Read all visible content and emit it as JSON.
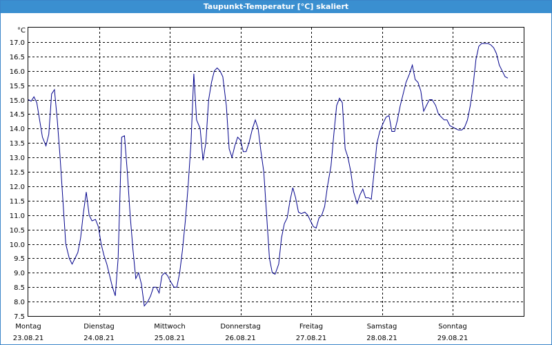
{
  "window": {
    "title": "Taupunkt-Temperatur [°C] skaliert"
  },
  "colors": {
    "title_bar": "#3a8fd0",
    "series_line": "#00008b",
    "grid": "#000000"
  },
  "chart_data": {
    "type": "line",
    "title": "Taupunkt-Temperatur [°C] skaliert",
    "ylabel": "°C",
    "ylim": [
      7.5,
      17.5
    ],
    "yticks": [
      7.5,
      8.0,
      8.5,
      9.0,
      9.5,
      10.0,
      10.5,
      11.0,
      11.5,
      12.0,
      12.5,
      13.0,
      13.5,
      14.0,
      14.5,
      15.0,
      15.5,
      16.0,
      16.5,
      17.0
    ],
    "ytick_labels": [
      "7.5",
      "8.0",
      "8.5",
      "9.0",
      "9.5",
      "10.0",
      "10.5",
      "11.0",
      "11.5",
      "12.0",
      "12.5",
      "13.0",
      "13.5",
      "14.0",
      "14.5",
      "15.0",
      "15.5",
      "16.0",
      "16.5",
      "17.0"
    ],
    "x_days": [
      {
        "day": "Montag",
        "date": "23.08.21"
      },
      {
        "day": "Dienstag",
        "date": "24.08.21"
      },
      {
        "day": "Mittwoch",
        "date": "25.08.21"
      },
      {
        "day": "Donnerstag",
        "date": "26.08.21"
      },
      {
        "day": "Freitag",
        "date": "27.08.21"
      },
      {
        "day": "Samstag",
        "date": "28.08.21"
      },
      {
        "day": "Sonntag",
        "date": "29.08.21"
      }
    ],
    "grid": true,
    "series": [
      {
        "points": [
          [
            0.0,
            15.0
          ],
          [
            0.04,
            14.95
          ],
          [
            0.08,
            15.1
          ],
          [
            0.12,
            14.9
          ],
          [
            0.16,
            14.3
          ],
          [
            0.2,
            13.7
          ],
          [
            0.25,
            13.4
          ],
          [
            0.29,
            13.8
          ],
          [
            0.33,
            15.2
          ],
          [
            0.37,
            15.35
          ],
          [
            0.41,
            14.3
          ],
          [
            0.45,
            13.0
          ],
          [
            0.49,
            11.5
          ],
          [
            0.53,
            10.0
          ],
          [
            0.58,
            9.5
          ],
          [
            0.62,
            9.3
          ],
          [
            0.66,
            9.5
          ],
          [
            0.7,
            9.7
          ],
          [
            0.74,
            10.2
          ],
          [
            0.78,
            11.1
          ],
          [
            0.82,
            11.8
          ],
          [
            0.86,
            11.0
          ],
          [
            0.9,
            10.8
          ],
          [
            0.95,
            10.85
          ],
          [
            0.99,
            10.6
          ],
          [
            1.03,
            10.0
          ],
          [
            1.07,
            9.6
          ],
          [
            1.11,
            9.3
          ],
          [
            1.15,
            8.9
          ],
          [
            1.19,
            8.5
          ],
          [
            1.23,
            8.2
          ],
          [
            1.27,
            9.5
          ],
          [
            1.32,
            13.7
          ],
          [
            1.36,
            13.75
          ],
          [
            1.4,
            12.5
          ],
          [
            1.44,
            11.0
          ],
          [
            1.48,
            9.8
          ],
          [
            1.52,
            8.8
          ],
          [
            1.56,
            9.0
          ],
          [
            1.6,
            8.6
          ],
          [
            1.64,
            7.85
          ],
          [
            1.69,
            8.0
          ],
          [
            1.73,
            8.2
          ],
          [
            1.77,
            8.5
          ],
          [
            1.81,
            8.5
          ],
          [
            1.85,
            8.3
          ],
          [
            1.89,
            8.9
          ],
          [
            1.93,
            9.0
          ],
          [
            1.97,
            8.9
          ],
          [
            2.01,
            8.7
          ],
          [
            2.06,
            8.5
          ],
          [
            2.1,
            8.5
          ],
          [
            2.14,
            9.0
          ],
          [
            2.18,
            9.8
          ],
          [
            2.22,
            10.8
          ],
          [
            2.26,
            12.0
          ],
          [
            2.3,
            13.5
          ],
          [
            2.34,
            15.9
          ],
          [
            2.38,
            14.3
          ],
          [
            2.43,
            14.0
          ],
          [
            2.47,
            12.9
          ],
          [
            2.51,
            13.5
          ],
          [
            2.55,
            15.0
          ],
          [
            2.59,
            15.6
          ],
          [
            2.63,
            16.0
          ],
          [
            2.67,
            16.1
          ],
          [
            2.71,
            16.0
          ],
          [
            2.75,
            15.8
          ],
          [
            2.8,
            14.8
          ],
          [
            2.84,
            13.3
          ],
          [
            2.88,
            13.0
          ],
          [
            2.92,
            13.4
          ],
          [
            2.96,
            13.7
          ],
          [
            3.0,
            13.6
          ],
          [
            3.04,
            13.2
          ],
          [
            3.08,
            13.2
          ],
          [
            3.12,
            13.5
          ],
          [
            3.17,
            14.0
          ],
          [
            3.21,
            14.3
          ],
          [
            3.25,
            14.0
          ],
          [
            3.29,
            13.2
          ],
          [
            3.33,
            12.5
          ],
          [
            3.37,
            11.0
          ],
          [
            3.41,
            9.5
          ],
          [
            3.45,
            9.0
          ],
          [
            3.49,
            8.95
          ],
          [
            3.54,
            9.3
          ],
          [
            3.58,
            10.2
          ],
          [
            3.62,
            10.7
          ],
          [
            3.66,
            10.9
          ],
          [
            3.7,
            11.5
          ],
          [
            3.74,
            11.95
          ],
          [
            3.78,
            11.6
          ],
          [
            3.82,
            11.1
          ],
          [
            3.86,
            11.05
          ],
          [
            3.91,
            11.1
          ],
          [
            3.95,
            11.0
          ],
          [
            3.99,
            10.8
          ],
          [
            4.03,
            10.6
          ],
          [
            4.07,
            10.55
          ],
          [
            4.11,
            10.9
          ],
          [
            4.15,
            11.0
          ],
          [
            4.19,
            11.3
          ],
          [
            4.23,
            12.0
          ],
          [
            4.28,
            12.7
          ],
          [
            4.32,
            13.8
          ],
          [
            4.36,
            14.8
          ],
          [
            4.4,
            15.05
          ],
          [
            4.44,
            14.9
          ],
          [
            4.48,
            13.3
          ],
          [
            4.52,
            13.0
          ],
          [
            4.56,
            12.5
          ],
          [
            4.6,
            11.8
          ],
          [
            4.65,
            11.4
          ],
          [
            4.69,
            11.7
          ],
          [
            4.73,
            11.9
          ],
          [
            4.77,
            11.6
          ],
          [
            4.81,
            11.6
          ],
          [
            4.85,
            11.55
          ],
          [
            4.89,
            12.5
          ],
          [
            4.93,
            13.5
          ],
          [
            4.97,
            13.9
          ],
          [
            5.02,
            14.2
          ],
          [
            5.06,
            14.4
          ],
          [
            5.1,
            14.45
          ],
          [
            5.14,
            13.9
          ],
          [
            5.18,
            13.9
          ],
          [
            5.22,
            14.3
          ],
          [
            5.26,
            14.8
          ],
          [
            5.3,
            15.2
          ],
          [
            5.34,
            15.6
          ],
          [
            5.39,
            15.9
          ],
          [
            5.43,
            16.2
          ],
          [
            5.47,
            15.7
          ],
          [
            5.51,
            15.6
          ],
          [
            5.55,
            15.3
          ],
          [
            5.59,
            14.6
          ],
          [
            5.63,
            14.8
          ],
          [
            5.67,
            15.0
          ],
          [
            5.71,
            15.0
          ],
          [
            5.76,
            14.8
          ],
          [
            5.8,
            14.5
          ],
          [
            5.84,
            14.4
          ],
          [
            5.88,
            14.3
          ],
          [
            5.92,
            14.3
          ],
          [
            5.96,
            14.1
          ],
          [
            6.0,
            14.05
          ],
          [
            6.04,
            14.0
          ],
          [
            6.08,
            13.95
          ],
          [
            6.13,
            13.95
          ],
          [
            6.17,
            14.05
          ],
          [
            6.21,
            14.3
          ],
          [
            6.25,
            14.8
          ],
          [
            6.29,
            15.5
          ],
          [
            6.33,
            16.4
          ],
          [
            6.37,
            16.85
          ],
          [
            6.41,
            16.95
          ],
          [
            6.45,
            16.95
          ],
          [
            6.5,
            16.95
          ],
          [
            6.54,
            16.9
          ],
          [
            6.58,
            16.8
          ],
          [
            6.62,
            16.6
          ],
          [
            6.66,
            16.2
          ],
          [
            6.7,
            16.0
          ],
          [
            6.74,
            15.8
          ],
          [
            6.78,
            15.75
          ]
        ]
      }
    ]
  }
}
